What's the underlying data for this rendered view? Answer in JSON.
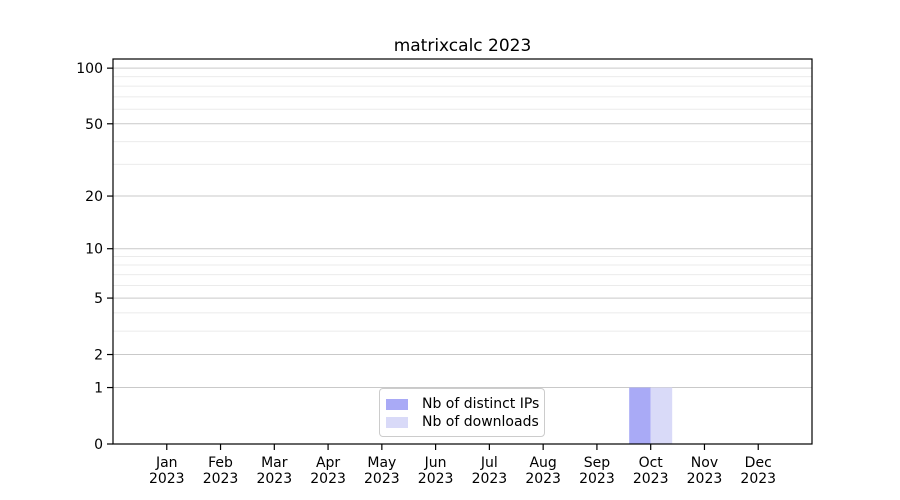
{
  "chart_data": {
    "type": "bar",
    "title": "matrixcalc 2023",
    "x_ticks": [
      [
        "Jan",
        "2023"
      ],
      [
        "Feb",
        "2023"
      ],
      [
        "Mar",
        "2023"
      ],
      [
        "Apr",
        "2023"
      ],
      [
        "May",
        "2023"
      ],
      [
        "Jun",
        "2023"
      ],
      [
        "Jul",
        "2023"
      ],
      [
        "Aug",
        "2023"
      ],
      [
        "Sep",
        "2023"
      ],
      [
        "Oct",
        "2023"
      ],
      [
        "Nov",
        "2023"
      ],
      [
        "Dec",
        "2023"
      ]
    ],
    "series": [
      {
        "name": "Nb of distinct IPs",
        "color": "#a9aaf6",
        "values": [
          0,
          0,
          0,
          0,
          0,
          0,
          0,
          0,
          0,
          1,
          0,
          0
        ]
      },
      {
        "name": "Nb of downloads",
        "color": "#d9daf8",
        "values": [
          0,
          0,
          0,
          0,
          0,
          0,
          0,
          0,
          0,
          1,
          0,
          0
        ]
      }
    ],
    "yscale": "log1p",
    "ylim": [
      0,
      112
    ],
    "y_major_ticks": [
      0,
      1,
      2,
      5,
      10,
      20,
      50,
      100
    ],
    "y_minor_ticks": [
      3,
      4,
      6,
      7,
      8,
      9,
      30,
      40,
      60,
      70,
      80,
      90
    ],
    "grid": true,
    "legend_position": "lower center",
    "colors": {
      "grid_major": "#c9c9c9",
      "grid_minor": "#ebebeb",
      "spine": "#000000",
      "text": "#000000",
      "legend_border": "#cccccc",
      "background": "#ffffff"
    }
  }
}
